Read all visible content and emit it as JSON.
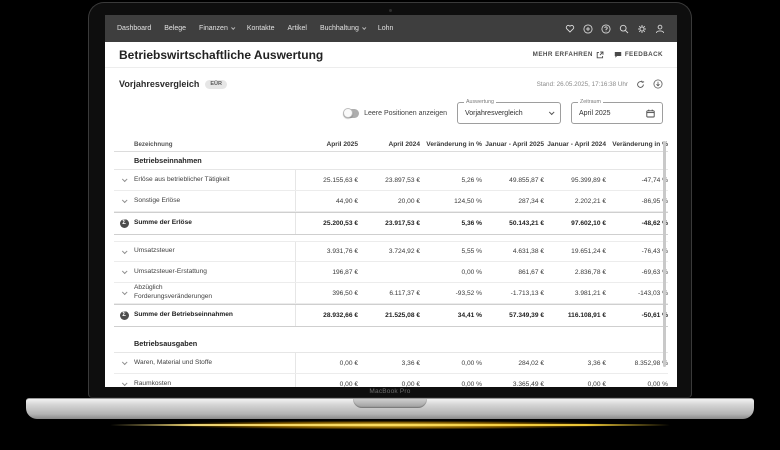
{
  "device": {
    "label": "MacBook Pro"
  },
  "colors": {
    "nav_bg": "#3e3e3e",
    "glow": "#ffc400",
    "sum_icon_bg": "#4c4c4c"
  },
  "nav": {
    "items": [
      {
        "label": "Dashboard",
        "dropdown": false
      },
      {
        "label": "Belege",
        "dropdown": false
      },
      {
        "label": "Finanzen",
        "dropdown": true
      },
      {
        "label": "Kontakte",
        "dropdown": false
      },
      {
        "label": "Artikel",
        "dropdown": false
      },
      {
        "label": "Buchhaltung",
        "dropdown": true
      },
      {
        "label": "Lohn",
        "dropdown": false
      }
    ],
    "icons": [
      "heart-icon",
      "plus-circle-icon",
      "help-icon",
      "search-icon",
      "gear-icon",
      "user-icon"
    ]
  },
  "header": {
    "title": "Betriebswirtschaftliche Auswertung",
    "more_label": "MEHR ERFAHREN",
    "feedback_label": "FEEDBACK"
  },
  "report": {
    "title": "Vorjahresvergleich",
    "badge": "EÜR",
    "status": "Stand: 26.05.2025, 17:16:38 Uhr",
    "toggle_label": "Leere Positionen anzeigen",
    "toggle_state": "off",
    "auswertung_label": "Auswertung",
    "auswertung_value": "Vorjahresvergleich",
    "zeitraum_label": "Zeitraum",
    "zeitraum_value": "April 2025"
  },
  "table": {
    "columns": [
      "Bezeichnung",
      "April 2025",
      "April 2024",
      "Veränderung in %",
      "Januar - April 2025",
      "Januar - April 2024",
      "Veränderung in %"
    ],
    "sum_glyph": "Σ",
    "rows": [
      {
        "type": "section",
        "label": "Betriebseinnahmen"
      },
      {
        "type": "data",
        "label": "Erlöse aus betrieblicher Tätigkeit",
        "values": [
          "25.155,63 €",
          "23.897,53 €",
          "5,26 %",
          "49.855,87 €",
          "95.399,89 €",
          "-47,74 %"
        ]
      },
      {
        "type": "data",
        "label": "Sonstige Erlöse",
        "values": [
          "44,90 €",
          "20,00 €",
          "124,50 %",
          "287,34 €",
          "2.202,21 €",
          "-86,95 %"
        ]
      },
      {
        "type": "sum",
        "label": "Summe der Erlöse",
        "values": [
          "25.200,53 €",
          "23.917,53 €",
          "5,36 %",
          "50.143,21 €",
          "97.602,10 €",
          "-48,62 %"
        ]
      },
      {
        "type": "data",
        "label": "Umsatzsteuer",
        "values": [
          "3.931,76 €",
          "3.724,92 €",
          "5,55 %",
          "4.631,38 €",
          "19.651,24 €",
          "-76,43 %"
        ]
      },
      {
        "type": "data",
        "label": "Umsatzsteuer-Erstattung",
        "values": [
          "196,87 €",
          "",
          "0,00 %",
          "861,67 €",
          "2.836,78 €",
          "-69,63 %"
        ]
      },
      {
        "type": "data",
        "label": "Abzüglich Forderungsveränderungen",
        "values": [
          "396,50 €",
          "6.117,37 €",
          "-93,52 %",
          "-1.713,13 €",
          "3.981,21 €",
          "-143,03 %"
        ]
      },
      {
        "type": "sum",
        "label": "Summe der Betriebseinnahmen",
        "values": [
          "28.932,66 €",
          "21.525,08 €",
          "34,41 %",
          "57.349,39 €",
          "116.108,91 €",
          "-50,61 %"
        ]
      },
      {
        "type": "section",
        "label": "Betriebsausgaben"
      },
      {
        "type": "data",
        "label": "Waren, Material und Stoffe",
        "values": [
          "0,00 €",
          "3,36 €",
          "0,00 %",
          "284,02 €",
          "3,36 €",
          "8.352,98 %"
        ]
      },
      {
        "type": "data",
        "label": "Raumkosten",
        "values": [
          "0,00 €",
          "0,00 €",
          "0,00 %",
          "3.365,49 €",
          "0,00 €",
          "0,00 %"
        ]
      }
    ]
  }
}
